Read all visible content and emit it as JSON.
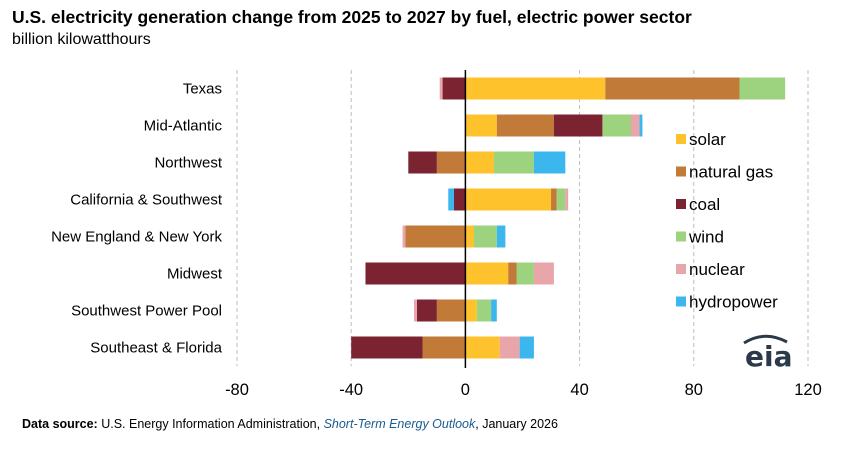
{
  "chart_data": {
    "type": "bar",
    "orientation": "horizontal",
    "stacked": true,
    "title": "U.S. electricity generation change from 2025 to 2027 by fuel, electric power sector",
    "subtitle": "billion kilowatthours",
    "categories": [
      "Texas",
      "Mid-Atlantic",
      "Northwest",
      "California & Southwest",
      "New England & New York",
      "Midwest",
      "Southwest Power Pool",
      "Southeast & Florida"
    ],
    "series": [
      {
        "name": "solar",
        "color": "#fdc22c",
        "values": [
          49,
          11,
          10,
          30,
          3,
          15,
          4,
          12
        ]
      },
      {
        "name": "natural gas",
        "color": "#c17a37",
        "values": [
          47,
          20,
          -10,
          2,
          -21,
          3,
          -10,
          -15
        ]
      },
      {
        "name": "coal",
        "color": "#7b2331",
        "values": [
          -8,
          17,
          -10,
          -4,
          0,
          -35,
          -7,
          -25
        ]
      },
      {
        "name": "wind",
        "color": "#9dd27f",
        "values": [
          16,
          10,
          14,
          3,
          8,
          6,
          5,
          0
        ]
      },
      {
        "name": "nuclear",
        "color": "#e8a6ab",
        "values": [
          -1,
          3,
          0,
          1,
          -1,
          7,
          -1,
          7
        ]
      },
      {
        "name": "hydropower",
        "color": "#3bb7ee",
        "values": [
          0,
          1,
          11,
          -2,
          3,
          0,
          2,
          5
        ]
      }
    ],
    "xlim": [
      -80,
      120
    ],
    "xticks": [
      "-80",
      "-40",
      "0",
      "40",
      "80",
      "120"
    ],
    "grid": "vertical",
    "legend": "right"
  },
  "logo_text": "eia",
  "source": {
    "label": "Data source:",
    "org": "U.S. Energy Information Administration,",
    "publication": "Short-Term Energy Outlook",
    "date": ", January 2026"
  }
}
